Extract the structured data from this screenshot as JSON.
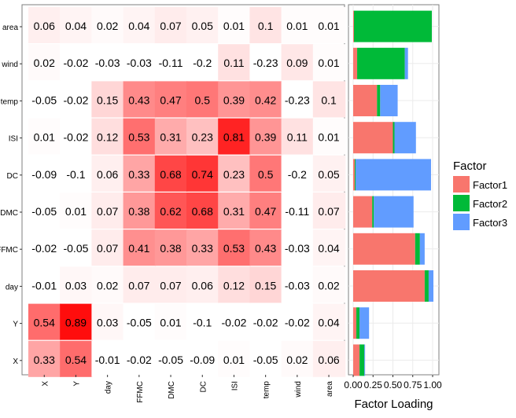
{
  "chart_data": [
    {
      "type": "heatmap",
      "x_categories": [
        "X",
        "Y",
        "day",
        "FFMC",
        "DMC",
        "DC",
        "ISI",
        "temp",
        "wind",
        "area"
      ],
      "y_categories": [
        "area",
        "wind",
        "temp",
        "ISI",
        "DC",
        "DMC",
        "FFMC",
        "day",
        "Y",
        "X"
      ],
      "values": [
        [
          "0.06",
          "0.04",
          "0.02",
          "0.04",
          "0.07",
          "0.05",
          "0.01",
          "0.1",
          "0.01",
          "0.01"
        ],
        [
          "0.02",
          "-0.02",
          "-0.03",
          "-0.03",
          "-0.11",
          "-0.2",
          "0.11",
          "-0.23",
          "0.09",
          "0.01"
        ],
        [
          "-0.05",
          "-0.02",
          "0.15",
          "0.43",
          "0.47",
          "0.5",
          "0.39",
          "0.42",
          "-0.23",
          "0.1"
        ],
        [
          "0.01",
          "-0.02",
          "0.12",
          "0.53",
          "0.31",
          "0.23",
          "0.81",
          "0.39",
          "0.11",
          "0.01"
        ],
        [
          "-0.09",
          "-0.1",
          "0.06",
          "0.33",
          "0.68",
          "0.74",
          "0.23",
          "0.5",
          "-0.2",
          "0.05"
        ],
        [
          "-0.05",
          "0.01",
          "0.07",
          "0.38",
          "0.62",
          "0.68",
          "0.31",
          "0.47",
          "-0.11",
          "0.07"
        ],
        [
          "-0.02",
          "-0.05",
          "0.07",
          "0.41",
          "0.38",
          "0.33",
          "0.53",
          "0.43",
          "-0.03",
          "0.04"
        ],
        [
          "-0.01",
          "0.03",
          "0.02",
          "0.07",
          "0.07",
          "0.06",
          "0.12",
          "0.15",
          "-0.03",
          "0.02"
        ],
        [
          "0.54",
          "0.89",
          "0.03",
          "-0.05",
          "0.01",
          "-0.1",
          "-0.02",
          "-0.02",
          "-0.02",
          "0.04"
        ],
        [
          "0.33",
          "0.54",
          "-0.01",
          "-0.02",
          "-0.05",
          "-0.09",
          "0.01",
          "-0.05",
          "0.02",
          "0.06"
        ]
      ],
      "low_color": "#ffffff",
      "high_color": "#ff0000"
    },
    {
      "type": "bar",
      "orientation": "horizontal",
      "stacked": true,
      "categories": [
        "area",
        "wind",
        "temp",
        "ISI",
        "DC",
        "DMC",
        "FFMC",
        "day",
        "Y",
        "X"
      ],
      "series": [
        {
          "name": "Factor1",
          "color": "#f8766d",
          "values": [
            0.01,
            0.05,
            0.3,
            0.5,
            0.02,
            0.24,
            0.78,
            0.9,
            0.04,
            0.08
          ]
        },
        {
          "name": "Factor2",
          "color": "#00ba38",
          "values": [
            0.98,
            0.6,
            0.04,
            0.02,
            0.01,
            0.02,
            0.06,
            0.05,
            0.04,
            0.06
          ]
        },
        {
          "name": "Factor3",
          "color": "#619cff",
          "values": [
            0.0,
            0.04,
            0.22,
            0.27,
            0.95,
            0.5,
            0.06,
            0.06,
            0.12,
            0.01
          ]
        }
      ],
      "xlim": [
        0,
        1.0
      ],
      "xticks": [
        "0.00",
        "0.25",
        "0.50",
        "0.75",
        "1.00"
      ],
      "xlabel": "Factor Loading",
      "legend_title": "Factor",
      "legend_position": "right",
      "grid": true
    }
  ]
}
